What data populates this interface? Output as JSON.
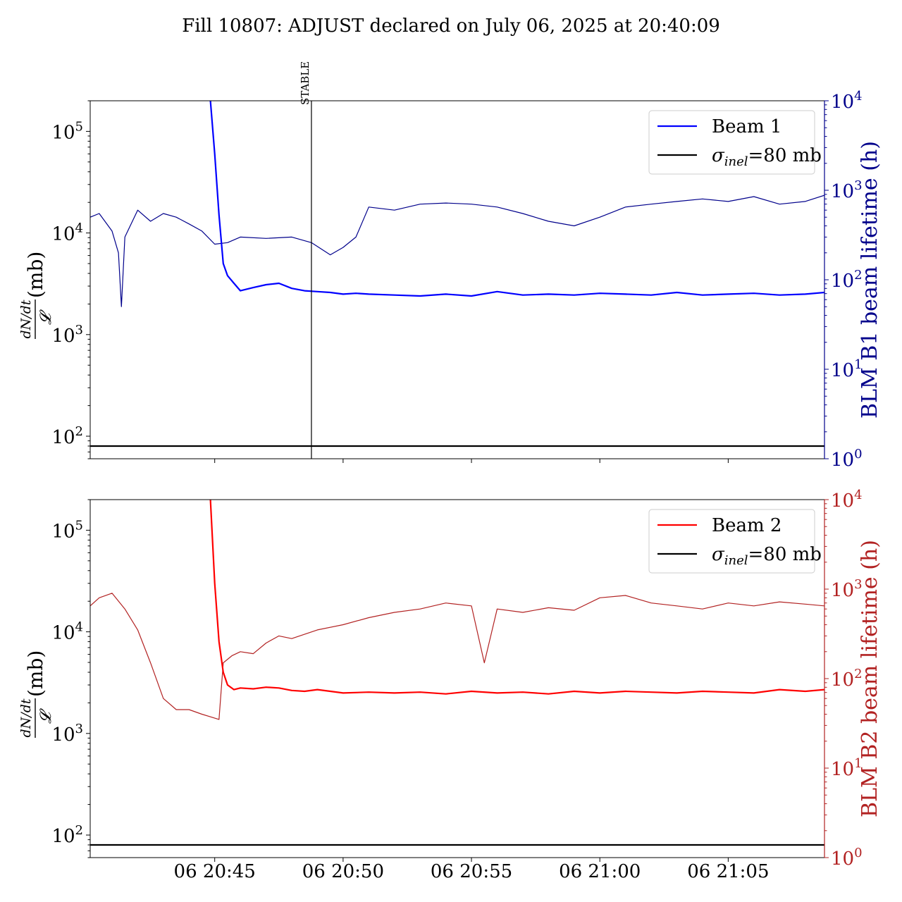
{
  "title": "Fill 10807: ADJUST declared on July 06, 2025 at 20:40:09",
  "chart_data": [
    {
      "type": "line",
      "panel": "top",
      "x_ticks": [
        "06 20:45",
        "06 20:50",
        "06 20:55",
        "06 21:00",
        "06 21:05"
      ],
      "xlim": [
        "2025-07-06 20:40:09",
        "2025-07-06 21:08:45"
      ],
      "left_axis": {
        "label": "dN/dt / 𝓛 (mb)",
        "label_parts": {
          "num": "dN/dt",
          "den": "𝓛",
          "unit": " (mb)"
        },
        "scale": "log",
        "ylim": [
          60,
          200000
        ],
        "tick_labels": [
          {
            "base": "10",
            "exp": "2",
            "value": 100
          },
          {
            "base": "10",
            "exp": "3",
            "value": 1000
          },
          {
            "base": "10",
            "exp": "4",
            "value": 10000
          },
          {
            "base": "10",
            "exp": "5",
            "value": 100000
          }
        ]
      },
      "right_axis": {
        "label": "BLM B1 beam lifetime (h)",
        "scale": "log",
        "ylim": [
          1,
          10000
        ],
        "color": "#00008b",
        "tick_labels": [
          {
            "base": "10",
            "exp": "0",
            "value": 1
          },
          {
            "base": "10",
            "exp": "1",
            "value": 10
          },
          {
            "base": "10",
            "exp": "2",
            "value": 100
          },
          {
            "base": "10",
            "exp": "3",
            "value": 1000
          },
          {
            "base": "10",
            "exp": "4",
            "value": 10000
          }
        ]
      },
      "vline": {
        "x": "2025-07-06 20:48:46",
        "label": "STABLE"
      },
      "hline": {
        "axis": "left",
        "y": 80
      },
      "legend": {
        "placement": "upper right",
        "entries": [
          {
            "label": "Beam 1",
            "color": "#0000ff"
          },
          {
            "label_parts": {
              "sym": "σ",
              "sub": "inel",
              "rest": "=80 mb"
            },
            "color": "#000000"
          }
        ]
      },
      "series": [
        {
          "name": "Beam 1",
          "axis": "left",
          "color": "#0000ff",
          "x": [
            "20:44:50",
            "20:45:00",
            "20:45:10",
            "20:45:20",
            "20:45:30",
            "20:45:45",
            "20:46:00",
            "20:46:30",
            "20:47:00",
            "20:47:30",
            "20:48:00",
            "20:48:30",
            "20:49:00",
            "20:49:30",
            "20:50:00",
            "20:50:30",
            "20:51:00",
            "20:52:00",
            "20:53:00",
            "20:54:00",
            "20:55:00",
            "20:56:00",
            "20:57:00",
            "20:58:00",
            "20:59:00",
            "21:00:00",
            "21:01:00",
            "21:02:00",
            "21:03:00",
            "21:04:00",
            "21:05:00",
            "21:06:00",
            "21:07:00",
            "21:08:00",
            "21:08:45"
          ],
          "values": [
            200000,
            60000,
            15000,
            5000,
            3800,
            3200,
            2700,
            2900,
            3100,
            3200,
            2850,
            2700,
            2650,
            2600,
            2500,
            2550,
            2500,
            2450,
            2400,
            2500,
            2400,
            2650,
            2450,
            2500,
            2450,
            2550,
            2500,
            2450,
            2600,
            2450,
            2500,
            2550,
            2450,
            2500,
            2600
          ]
        },
        {
          "name": "BLM B1 beam lifetime",
          "axis": "right",
          "color": "#00008b",
          "x": [
            "20:40:09",
            "20:40:30",
            "20:41:00",
            "20:41:15",
            "20:41:22",
            "20:41:30",
            "20:42:00",
            "20:42:30",
            "20:43:00",
            "20:43:30",
            "20:44:00",
            "20:44:30",
            "20:45:00",
            "20:45:30",
            "20:46:00",
            "20:47:00",
            "20:48:00",
            "20:48:46",
            "20:49:30",
            "20:50:00",
            "20:50:30",
            "20:51:00",
            "20:52:00",
            "20:53:00",
            "20:54:00",
            "20:55:00",
            "20:56:00",
            "20:57:00",
            "20:58:00",
            "20:59:00",
            "21:00:00",
            "21:01:00",
            "21:02:00",
            "21:03:00",
            "21:04:00",
            "21:05:00",
            "21:06:00",
            "21:07:00",
            "21:08:00",
            "21:08:45"
          ],
          "values": [
            500,
            550,
            350,
            200,
            50,
            300,
            600,
            450,
            550,
            500,
            420,
            350,
            250,
            260,
            300,
            290,
            300,
            260,
            190,
            230,
            300,
            650,
            600,
            700,
            720,
            700,
            650,
            550,
            450,
            400,
            500,
            650,
            700,
            750,
            800,
            750,
            850,
            700,
            750,
            880
          ]
        }
      ]
    },
    {
      "type": "line",
      "panel": "bottom",
      "x_ticks": [
        "06 20:45",
        "06 20:50",
        "06 20:55",
        "06 21:00",
        "06 21:05"
      ],
      "xlim": [
        "2025-07-06 20:40:09",
        "2025-07-06 21:08:45"
      ],
      "left_axis": {
        "label": "dN/dt / 𝓛 (mb)",
        "label_parts": {
          "num": "dN/dt",
          "den": "𝓛",
          "unit": " (mb)"
        },
        "scale": "log",
        "ylim": [
          60,
          200000
        ],
        "tick_labels": [
          {
            "base": "10",
            "exp": "2",
            "value": 100
          },
          {
            "base": "10",
            "exp": "3",
            "value": 1000
          },
          {
            "base": "10",
            "exp": "4",
            "value": 10000
          },
          {
            "base": "10",
            "exp": "5",
            "value": 100000
          }
        ]
      },
      "right_axis": {
        "label": "BLM B2 beam lifetime (h)",
        "scale": "log",
        "ylim": [
          1,
          10000
        ],
        "color": "#b22222",
        "tick_labels": [
          {
            "base": "10",
            "exp": "0",
            "value": 1
          },
          {
            "base": "10",
            "exp": "1",
            "value": 10
          },
          {
            "base": "10",
            "exp": "2",
            "value": 100
          },
          {
            "base": "10",
            "exp": "3",
            "value": 1000
          },
          {
            "base": "10",
            "exp": "4",
            "value": 10000
          }
        ]
      },
      "hline": {
        "axis": "left",
        "y": 80
      },
      "legend": {
        "placement": "upper right",
        "entries": [
          {
            "label": "Beam 2",
            "color": "#ff0000"
          },
          {
            "label_parts": {
              "sym": "σ",
              "sub": "inel",
              "rest": "=80 mb"
            },
            "color": "#000000"
          }
        ]
      },
      "series": [
        {
          "name": "Beam 2",
          "axis": "left",
          "color": "#ff0000",
          "x": [
            "20:44:50",
            "20:45:00",
            "20:45:10",
            "20:45:20",
            "20:45:30",
            "20:45:45",
            "20:46:00",
            "20:46:30",
            "20:47:00",
            "20:47:30",
            "20:48:00",
            "20:48:30",
            "20:49:00",
            "20:49:30",
            "20:50:00",
            "20:51:00",
            "20:52:00",
            "20:53:00",
            "20:54:00",
            "20:55:00",
            "20:56:00",
            "20:57:00",
            "20:58:00",
            "20:59:00",
            "21:00:00",
            "21:01:00",
            "21:02:00",
            "21:03:00",
            "21:04:00",
            "21:05:00",
            "21:06:00",
            "21:07:00",
            "21:08:00",
            "21:08:45"
          ],
          "values": [
            200000,
            30000,
            8000,
            4000,
            3000,
            2700,
            2800,
            2750,
            2850,
            2800,
            2650,
            2600,
            2700,
            2600,
            2500,
            2550,
            2500,
            2550,
            2450,
            2600,
            2500,
            2550,
            2450,
            2600,
            2500,
            2600,
            2550,
            2500,
            2600,
            2550,
            2500,
            2700,
            2600,
            2700
          ]
        },
        {
          "name": "BLM B2 beam lifetime",
          "axis": "right",
          "color": "#b22222",
          "x": [
            "20:40:09",
            "20:40:30",
            "20:41:00",
            "20:41:30",
            "20:42:00",
            "20:42:30",
            "20:43:00",
            "20:43:30",
            "20:44:00",
            "20:44:30",
            "20:45:10",
            "20:45:20",
            "20:45:40",
            "20:46:00",
            "20:46:30",
            "20:47:00",
            "20:47:30",
            "20:48:00",
            "20:49:00",
            "20:50:00",
            "20:51:00",
            "20:52:00",
            "20:53:00",
            "20:54:00",
            "20:55:00",
            "20:55:30",
            "20:56:00",
            "20:57:00",
            "20:58:00",
            "20:59:00",
            "21:00:00",
            "21:01:00",
            "21:02:00",
            "21:03:00",
            "21:04:00",
            "21:05:00",
            "21:06:00",
            "21:07:00",
            "21:08:00",
            "21:08:45"
          ],
          "values": [
            650,
            800,
            900,
            600,
            350,
            150,
            60,
            45,
            45,
            40,
            35,
            150,
            180,
            200,
            190,
            250,
            300,
            280,
            350,
            400,
            480,
            550,
            600,
            700,
            650,
            150,
            600,
            550,
            620,
            580,
            800,
            850,
            700,
            650,
            600,
            700,
            650,
            720,
            680,
            650
          ]
        }
      ]
    }
  ]
}
